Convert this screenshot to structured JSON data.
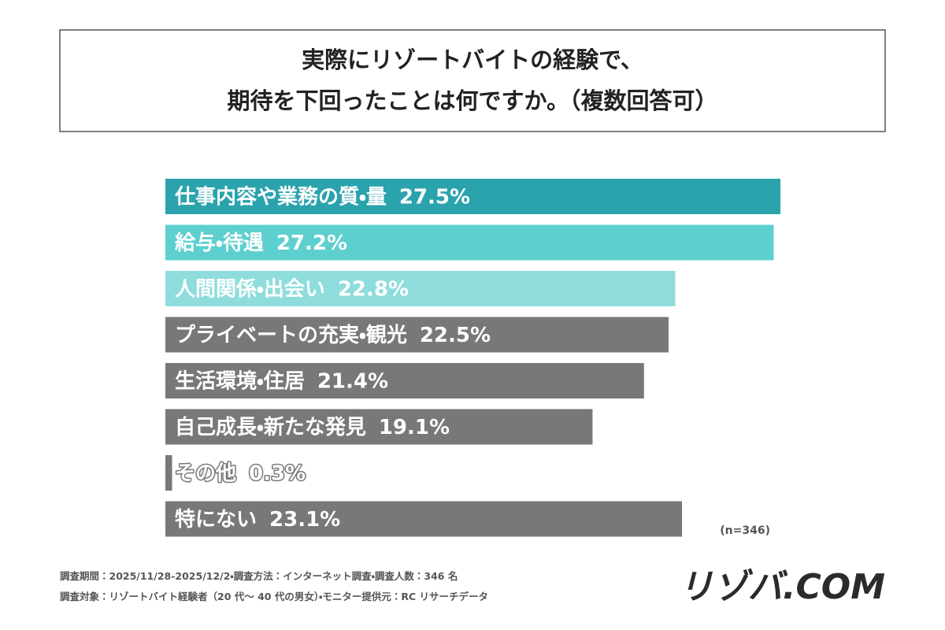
{
  "chart_data": {
    "type": "bar",
    "orientation": "horizontal",
    "title": [
      "実際にリゾートバイトの経験で、",
      "期待を下回ったことは何ですか。（複数回答可）"
    ],
    "categories": [
      "仕事内容や業務の質・量",
      "給与・待遇",
      "人間関係・出会い",
      "プライベートの充実・観光",
      "生活環境・住居",
      "自己成長・新たな発見",
      "その他",
      "特にない"
    ],
    "values": [
      27.5,
      27.2,
      22.8,
      22.5,
      21.4,
      19.1,
      0.3,
      23.1
    ],
    "value_labels": [
      "27.5%",
      "27.2%",
      "22.8%",
      "22.5%",
      "21.4%",
      "19.1%",
      "0.3%",
      "23.1%"
    ],
    "colors": [
      "#2ba3ad",
      "#5dcfcf",
      "#8edddc",
      "#7a7778",
      "#7a7778",
      "#7a7778",
      "#7a7778",
      "#7a7778"
    ],
    "sample_size": "(n=346)",
    "footnotes": [
      "調査期間：2025/11/28-2025/12/2・調査方法：インターネット調査・調査人数：346 名",
      "調査対象：リゾートバイト経験者（20 代〜 40 代の男女）・モニター提供元：RC リサーチデータ"
    ],
    "logo": "リゾバ.COM"
  }
}
